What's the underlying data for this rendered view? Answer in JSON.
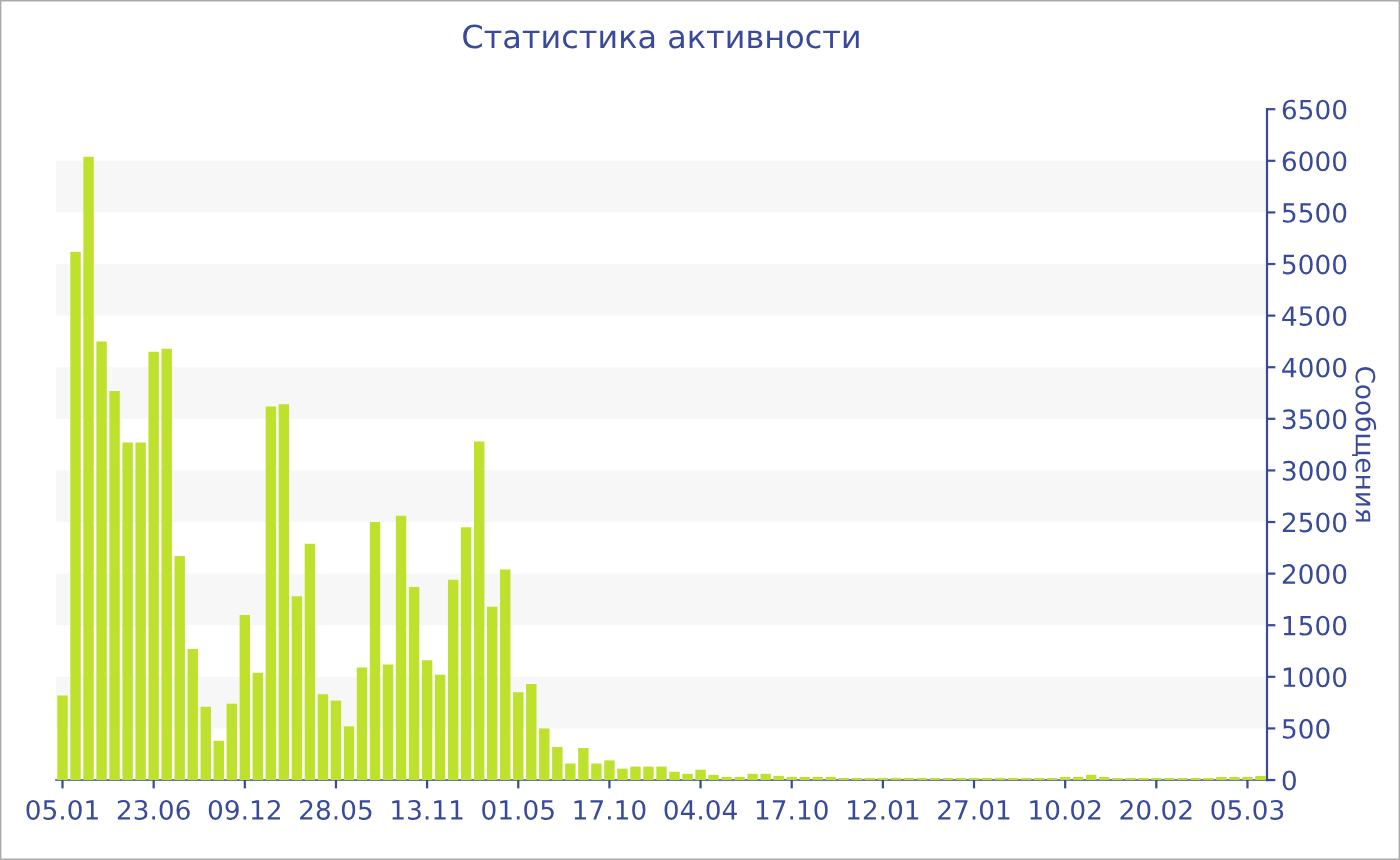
{
  "chart_data": {
    "type": "bar",
    "title": "Статистика активности",
    "ylabel": "Сообщения",
    "categories": [
      "05.01",
      null,
      null,
      null,
      null,
      null,
      null,
      "23.06",
      null,
      null,
      null,
      null,
      null,
      null,
      "09.12",
      null,
      null,
      null,
      null,
      null,
      null,
      "28.05",
      null,
      null,
      null,
      null,
      null,
      null,
      "13.11",
      null,
      null,
      null,
      null,
      null,
      null,
      "01.05",
      null,
      null,
      null,
      null,
      null,
      null,
      "17.10",
      null,
      null,
      null,
      null,
      null,
      null,
      "04.04",
      null,
      null,
      null,
      null,
      null,
      null,
      "17.10",
      null,
      null,
      null,
      null,
      null,
      null,
      "12.01",
      null,
      null,
      null,
      null,
      null,
      null,
      "27.01",
      null,
      null,
      null,
      null,
      null,
      null,
      "10.02",
      null,
      null,
      null,
      null,
      null,
      null,
      "20.02",
      null,
      null,
      null,
      null,
      null,
      null,
      "05.03",
      null
    ],
    "values": [
      820,
      5120,
      6040,
      4250,
      3770,
      3270,
      3270,
      4150,
      4180,
      2170,
      1270,
      710,
      380,
      740,
      1600,
      1040,
      3620,
      3640,
      1780,
      2290,
      830,
      770,
      520,
      1090,
      2500,
      1120,
      2560,
      1870,
      1160,
      1020,
      1940,
      2450,
      3280,
      1680,
      2040,
      850,
      930,
      500,
      320,
      160,
      310,
      160,
      190,
      110,
      130,
      130,
      130,
      80,
      60,
      100,
      50,
      30,
      30,
      60,
      60,
      40,
      30,
      30,
      30,
      30,
      20,
      20,
      20,
      20,
      20,
      20,
      20,
      20,
      20,
      20,
      20,
      20,
      20,
      20,
      20,
      20,
      20,
      30,
      30,
      50,
      30,
      20,
      20,
      20,
      20,
      20,
      20,
      20,
      20,
      30,
      30,
      30,
      40
    ],
    "color": "#bde12d",
    "ylim": [
      0,
      6500
    ],
    "yticks": [
      0,
      500,
      1000,
      1500,
      2000,
      2500,
      3000,
      3500,
      4000,
      4500,
      5000,
      5500,
      6000,
      6500
    ],
    "bands": [
      {
        "axis": "y",
        "from": 500,
        "to": 1000,
        "color": "#f7f7f7"
      },
      {
        "axis": "y",
        "from": 1500,
        "to": 2000,
        "color": "#f7f7f7"
      },
      {
        "axis": "y",
        "from": 2500,
        "to": 3000,
        "color": "#f7f7f7"
      },
      {
        "axis": "y",
        "from": 3500,
        "to": 4000,
        "color": "#f7f7f7"
      },
      {
        "axis": "y",
        "from": 4500,
        "to": 5000,
        "color": "#f7f7f7"
      },
      {
        "axis": "y",
        "from": 5500,
        "to": 6000,
        "color": "#f7f7f7"
      }
    ]
  }
}
